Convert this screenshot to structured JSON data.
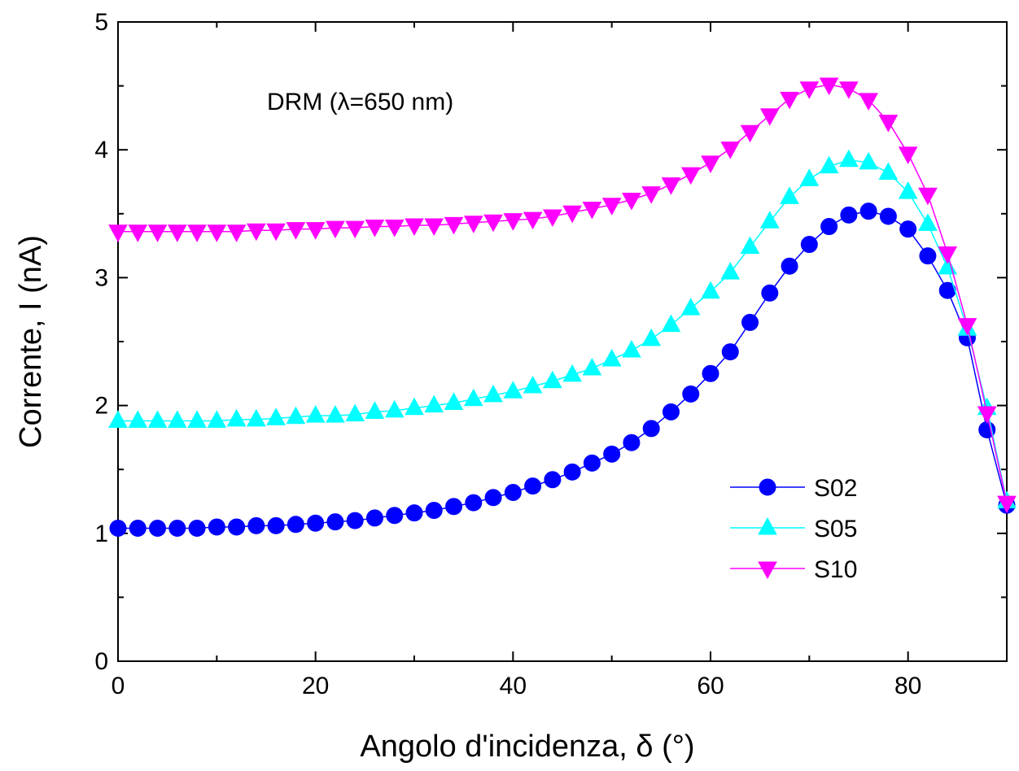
{
  "chart_data": {
    "type": "line",
    "xlabel": "Angolo d'incidenza, δ (°)",
    "ylabel": "Corrente, I (nA)",
    "annotation": "DRM (λ=650 nm)",
    "xlim": [
      0,
      90
    ],
    "ylim": [
      0,
      5
    ],
    "xticks": [
      0,
      20,
      40,
      60,
      80
    ],
    "yticks": [
      0,
      1,
      2,
      3,
      4,
      5
    ],
    "grid": false,
    "legend_position": "bottom-right",
    "x": [
      0,
      2,
      4,
      6,
      8,
      10,
      12,
      14,
      16,
      18,
      20,
      22,
      24,
      26,
      28,
      30,
      32,
      34,
      36,
      38,
      40,
      42,
      44,
      46,
      48,
      50,
      52,
      54,
      56,
      58,
      60,
      62,
      64,
      66,
      68,
      70,
      72,
      74,
      76,
      78,
      80,
      82,
      84,
      86,
      88,
      90
    ],
    "series": [
      {
        "name": "S02",
        "marker": "circle",
        "color": "#0000FF",
        "values": [
          1.04,
          1.04,
          1.04,
          1.04,
          1.04,
          1.05,
          1.05,
          1.06,
          1.06,
          1.07,
          1.08,
          1.09,
          1.1,
          1.12,
          1.14,
          1.16,
          1.18,
          1.21,
          1.24,
          1.28,
          1.32,
          1.37,
          1.42,
          1.48,
          1.55,
          1.62,
          1.71,
          1.82,
          1.95,
          2.09,
          2.25,
          2.42,
          2.65,
          2.88,
          3.09,
          3.26,
          3.4,
          3.49,
          3.52,
          3.48,
          3.38,
          3.17,
          2.9,
          2.53,
          1.81,
          1.22
        ]
      },
      {
        "name": "S05",
        "marker": "triangle-up",
        "color": "#00FFFF",
        "values": [
          1.88,
          1.88,
          1.88,
          1.88,
          1.88,
          1.88,
          1.89,
          1.89,
          1.9,
          1.91,
          1.92,
          1.92,
          1.93,
          1.95,
          1.96,
          1.98,
          2.0,
          2.02,
          2.05,
          2.08,
          2.11,
          2.15,
          2.19,
          2.24,
          2.29,
          2.36,
          2.43,
          2.52,
          2.63,
          2.76,
          2.89,
          3.04,
          3.24,
          3.44,
          3.63,
          3.77,
          3.87,
          3.92,
          3.9,
          3.82,
          3.67,
          3.42,
          3.08,
          2.6,
          1.98,
          1.25
        ]
      },
      {
        "name": "S10",
        "marker": "triangle-down",
        "color": "#FF00FF",
        "values": [
          3.36,
          3.36,
          3.36,
          3.36,
          3.36,
          3.36,
          3.36,
          3.37,
          3.37,
          3.38,
          3.38,
          3.39,
          3.39,
          3.4,
          3.4,
          3.41,
          3.41,
          3.42,
          3.43,
          3.44,
          3.45,
          3.46,
          3.48,
          3.51,
          3.54,
          3.57,
          3.61,
          3.66,
          3.73,
          3.81,
          3.9,
          4.01,
          4.14,
          4.27,
          4.4,
          4.48,
          4.51,
          4.48,
          4.39,
          4.22,
          3.97,
          3.65,
          3.19,
          2.63,
          1.94,
          1.24
        ]
      }
    ]
  }
}
